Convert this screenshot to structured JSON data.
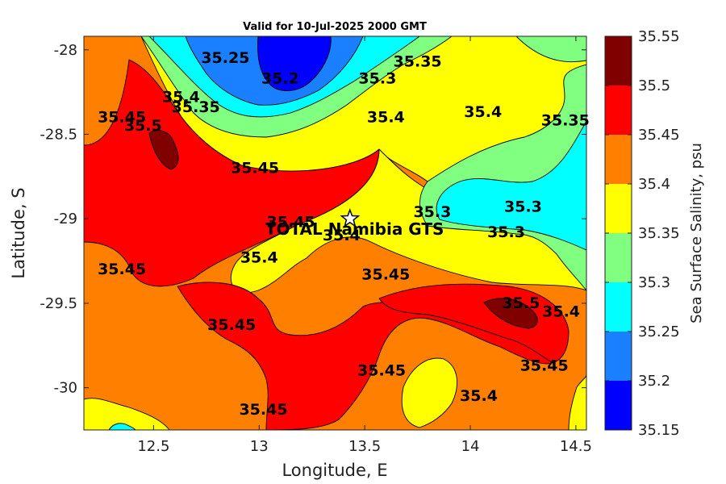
{
  "chart_data": {
    "type": "contour",
    "title": "Valid for 10-Jul-2025 2000 GMT",
    "xlabel": "Longitude, E",
    "ylabel": "Latitude, S",
    "xlim": [
      12.17,
      14.55
    ],
    "ylim": [
      -30.25,
      -27.92
    ],
    "xticks": [
      12.5,
      13,
      13.5,
      14,
      14.5
    ],
    "xtick_labels": [
      "12.5",
      "13",
      "13.5",
      "14",
      "14.5"
    ],
    "yticks": [
      -28,
      -28.5,
      -29,
      -29.5,
      -30
    ],
    "ytick_labels": [
      "-28",
      "-28.5",
      "-29",
      "-29.5",
      "-30"
    ],
    "colorbar": {
      "label": "Sea Surface Salinity, psu",
      "levels": [
        35.15,
        35.2,
        35.25,
        35.3,
        35.35,
        35.4,
        35.45,
        35.5,
        35.55
      ],
      "level_labels": [
        "35.15",
        "35.2",
        "35.25",
        "35.3",
        "35.35",
        "35.4",
        "35.45",
        "35.5",
        "35.55"
      ],
      "colors": [
        "#0000ff",
        "#1a80ff",
        "#00ffff",
        "#80ff80",
        "#ffff00",
        "#ff8000",
        "#ff0000",
        "#800000"
      ]
    },
    "site": {
      "name": "TOTAL Namibia GTS",
      "lon": 13.43,
      "lat": -29.0
    },
    "contour_labels": [
      {
        "text": "35.25",
        "lon": 12.84,
        "lat": -28.05
      },
      {
        "text": "35.2",
        "lon": 13.1,
        "lat": -28.17
      },
      {
        "text": "35.3",
        "lon": 13.56,
        "lat": -28.17
      },
      {
        "text": "35.35",
        "lon": 13.75,
        "lat": -28.07
      },
      {
        "text": "35.4",
        "lon": 13.6,
        "lat": -28.4
      },
      {
        "text": "35.4",
        "lon": 14.06,
        "lat": -28.37
      },
      {
        "text": "35.35",
        "lon": 14.45,
        "lat": -28.42
      },
      {
        "text": "35.45",
        "lon": 12.35,
        "lat": -28.4
      },
      {
        "text": "35.5",
        "lon": 12.45,
        "lat": -28.45
      },
      {
        "text": "35.4",
        "lon": 12.63,
        "lat": -28.28
      },
      {
        "text": "35.35",
        "lon": 12.7,
        "lat": -28.34
      },
      {
        "text": "35.45",
        "lon": 12.98,
        "lat": -28.7
      },
      {
        "text": "35.3",
        "lon": 13.82,
        "lat": -28.96
      },
      {
        "text": "35.3",
        "lon": 14.25,
        "lat": -28.93
      },
      {
        "text": "35.3",
        "lon": 14.17,
        "lat": -29.08
      },
      {
        "text": "35.45",
        "lon": 13.15,
        "lat": -29.02
      },
      {
        "text": "35.4",
        "lon": 13.39,
        "lat": -29.1
      },
      {
        "text": "35.4",
        "lon": 13.0,
        "lat": -29.23
      },
      {
        "text": "35.45",
        "lon": 13.6,
        "lat": -29.33
      },
      {
        "text": "35.45",
        "lon": 12.35,
        "lat": -29.3
      },
      {
        "text": "35.45",
        "lon": 12.87,
        "lat": -29.63
      },
      {
        "text": "35.5",
        "lon": 14.24,
        "lat": -29.5
      },
      {
        "text": "35.4",
        "lon": 14.43,
        "lat": -29.55
      },
      {
        "text": "35.45",
        "lon": 14.35,
        "lat": -29.87
      },
      {
        "text": "35.45",
        "lon": 13.58,
        "lat": -29.9
      },
      {
        "text": "35.45",
        "lon": 13.02,
        "lat": -30.13
      },
      {
        "text": "35.4",
        "lon": 14.04,
        "lat": -30.05
      }
    ]
  }
}
